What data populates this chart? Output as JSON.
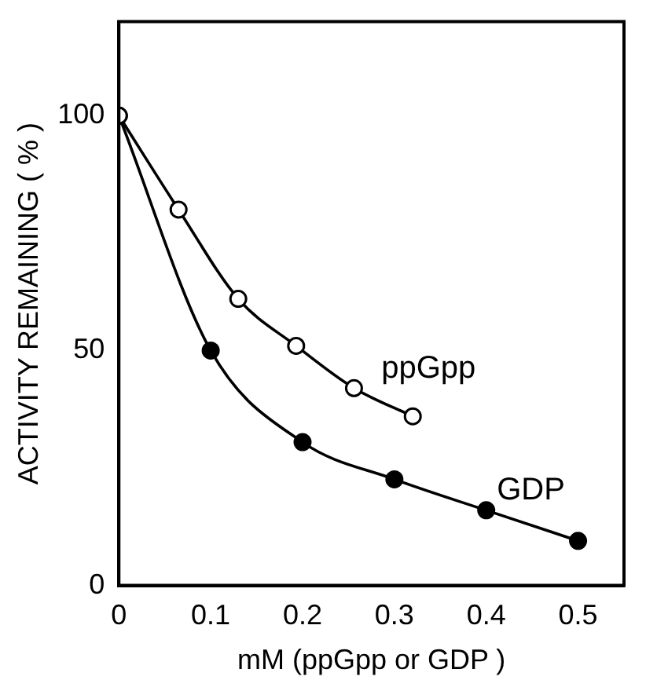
{
  "chart_data": {
    "type": "line",
    "xlabel": "mM (ppGpp or GDP )",
    "ylabel": "ACTIVITY REMAINING ( % )",
    "xlim": [
      0,
      0.55
    ],
    "xticks": [
      0,
      0.1,
      0.2,
      0.3,
      0.4,
      0.5
    ],
    "ylim": [
      0,
      120
    ],
    "yticks": [
      0,
      50,
      100
    ],
    "grid": false,
    "legend": false,
    "marker": "circle",
    "line_style": "solid",
    "series": [
      {
        "name": "ppGpp",
        "color": "#000000",
        "x": [
          0,
          0.065,
          0.13,
          0.193,
          0.256,
          0.32
        ],
        "values": [
          100,
          80,
          61,
          51,
          42,
          36
        ]
      },
      {
        "name": "GDP",
        "color": "#000000",
        "x": [
          0,
          0.1,
          0.2,
          0.3,
          0.4,
          0.5
        ],
        "values": [
          100,
          50,
          30.5,
          22.6,
          16,
          9.5
        ]
      }
    ]
  }
}
